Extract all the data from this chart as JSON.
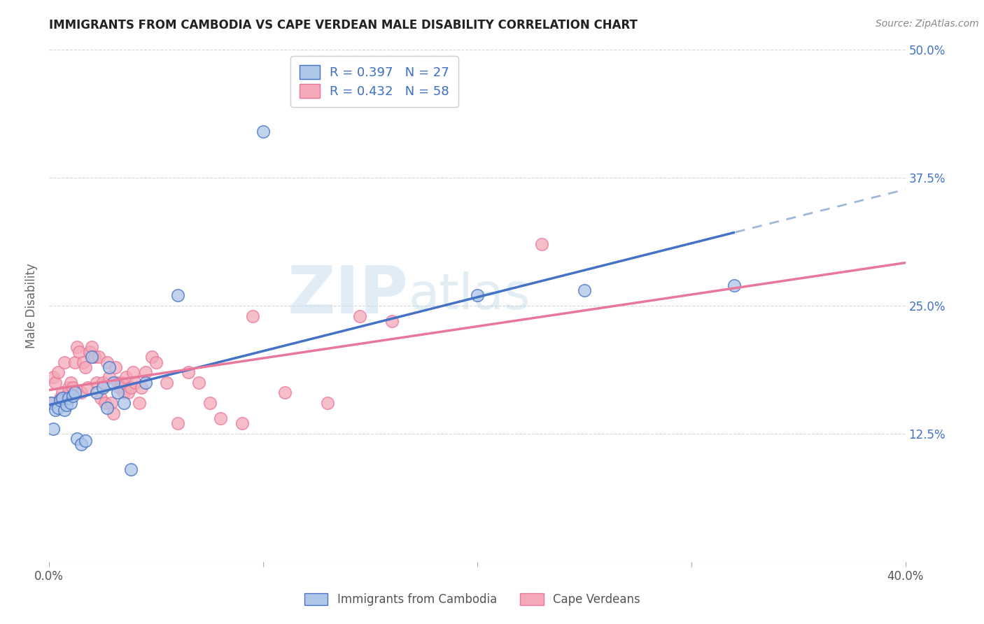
{
  "title": "IMMIGRANTS FROM CAMBODIA VS CAPE VERDEAN MALE DISABILITY CORRELATION CHART",
  "source": "Source: ZipAtlas.com",
  "ylabel": "Male Disability",
  "xlim": [
    0.0,
    0.4
  ],
  "ylim": [
    0.0,
    0.5
  ],
  "color_cambodia": "#aec6e8",
  "color_cape_verdean": "#f4a8b8",
  "trendline_cambodia": "#4472c4",
  "trendline_cape_verdean": "#e8789a",
  "trendline_cambodia_dashed": "#a0b8d8",
  "watermark_zip": "ZIP",
  "watermark_atlas": "atlas",
  "cambodia_points": [
    [
      0.001,
      0.155
    ],
    [
      0.002,
      0.13
    ],
    [
      0.003,
      0.148
    ],
    [
      0.004,
      0.15
    ],
    [
      0.005,
      0.158
    ],
    [
      0.006,
      0.16
    ],
    [
      0.007,
      0.148
    ],
    [
      0.008,
      0.153
    ],
    [
      0.009,
      0.16
    ],
    [
      0.01,
      0.155
    ],
    [
      0.011,
      0.162
    ],
    [
      0.012,
      0.165
    ],
    [
      0.013,
      0.12
    ],
    [
      0.015,
      0.115
    ],
    [
      0.017,
      0.118
    ],
    [
      0.02,
      0.2
    ],
    [
      0.022,
      0.165
    ],
    [
      0.025,
      0.17
    ],
    [
      0.027,
      0.15
    ],
    [
      0.028,
      0.19
    ],
    [
      0.03,
      0.175
    ],
    [
      0.032,
      0.165
    ],
    [
      0.035,
      0.155
    ],
    [
      0.038,
      0.09
    ],
    [
      0.045,
      0.175
    ],
    [
      0.06,
      0.26
    ],
    [
      0.1,
      0.42
    ],
    [
      0.2,
      0.26
    ],
    [
      0.25,
      0.265
    ],
    [
      0.32,
      0.27
    ]
  ],
  "cape_verdean_points": [
    [
      0.001,
      0.155
    ],
    [
      0.002,
      0.18
    ],
    [
      0.003,
      0.175
    ],
    [
      0.004,
      0.185
    ],
    [
      0.005,
      0.16
    ],
    [
      0.006,
      0.165
    ],
    [
      0.007,
      0.195
    ],
    [
      0.008,
      0.162
    ],
    [
      0.009,
      0.17
    ],
    [
      0.01,
      0.175
    ],
    [
      0.011,
      0.17
    ],
    [
      0.012,
      0.195
    ],
    [
      0.013,
      0.21
    ],
    [
      0.014,
      0.205
    ],
    [
      0.015,
      0.165
    ],
    [
      0.016,
      0.195
    ],
    [
      0.017,
      0.19
    ],
    [
      0.018,
      0.17
    ],
    [
      0.019,
      0.205
    ],
    [
      0.02,
      0.21
    ],
    [
      0.021,
      0.2
    ],
    [
      0.022,
      0.175
    ],
    [
      0.023,
      0.2
    ],
    [
      0.024,
      0.16
    ],
    [
      0.025,
      0.175
    ],
    [
      0.026,
      0.155
    ],
    [
      0.027,
      0.195
    ],
    [
      0.028,
      0.18
    ],
    [
      0.029,
      0.155
    ],
    [
      0.03,
      0.145
    ],
    [
      0.031,
      0.19
    ],
    [
      0.032,
      0.175
    ],
    [
      0.033,
      0.17
    ],
    [
      0.034,
      0.175
    ],
    [
      0.035,
      0.165
    ],
    [
      0.036,
      0.18
    ],
    [
      0.037,
      0.165
    ],
    [
      0.038,
      0.17
    ],
    [
      0.039,
      0.185
    ],
    [
      0.04,
      0.175
    ],
    [
      0.042,
      0.155
    ],
    [
      0.043,
      0.17
    ],
    [
      0.045,
      0.185
    ],
    [
      0.048,
      0.2
    ],
    [
      0.05,
      0.195
    ],
    [
      0.055,
      0.175
    ],
    [
      0.06,
      0.135
    ],
    [
      0.065,
      0.185
    ],
    [
      0.07,
      0.175
    ],
    [
      0.075,
      0.155
    ],
    [
      0.08,
      0.14
    ],
    [
      0.09,
      0.135
    ],
    [
      0.095,
      0.24
    ],
    [
      0.11,
      0.165
    ],
    [
      0.13,
      0.155
    ],
    [
      0.145,
      0.24
    ],
    [
      0.16,
      0.235
    ],
    [
      0.23,
      0.31
    ]
  ],
  "background_color": "#ffffff",
  "grid_color": "#cccccc"
}
